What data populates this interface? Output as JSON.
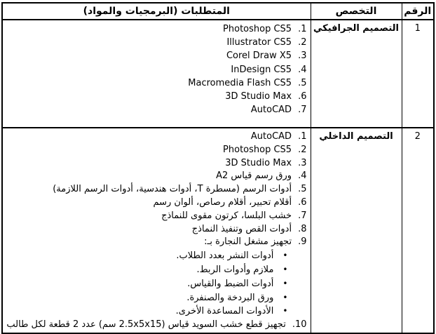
{
  "table": {
    "header": {
      "number": "الرقم",
      "specialization": "التخصص",
      "requirements": "المتطلبات (البرمجيات والمواد)"
    },
    "rows": [
      {
        "number": "1",
        "specialization": "التصميم الجرافيكي",
        "items": [
          {
            "marker": "1.",
            "text": "Photoshop CS5"
          },
          {
            "marker": "2.",
            "text": "Illustrator CS5"
          },
          {
            "marker": "3.",
            "text": "Corel Draw X5"
          },
          {
            "marker": "4.",
            "text": "InDesign CS5"
          },
          {
            "marker": "5.",
            "text": "Macromedia Flash CS5"
          },
          {
            "marker": "6.",
            "text": "3D Studio Max"
          },
          {
            "marker": "7.",
            "text": "AutoCAD"
          }
        ]
      },
      {
        "number": "2",
        "specialization": "التصميم الداخلي",
        "items": [
          {
            "marker": "1.",
            "text": "AutoCAD"
          },
          {
            "marker": "2.",
            "text": "Photoshop CS5"
          },
          {
            "marker": "3.",
            "text": "3D Studio Max"
          },
          {
            "marker": "4.",
            "text": "ورق رسم قياس A2"
          },
          {
            "marker": "5.",
            "text": "أدوات الرسم (مسطرة T، أدوات هندسية، أدوات الرسم اللازمة)"
          },
          {
            "marker": "6.",
            "text": "أقلام تحبير، أقلام رصاص، ألوان رسم"
          },
          {
            "marker": "7.",
            "text": "خشب البلسا، كرتون مقوى للنماذج"
          },
          {
            "marker": "8.",
            "text": "أدوات القص وتنفيذ النماذج"
          },
          {
            "marker": "9.",
            "text": "تجهيز مشغل النجارة بـ:"
          }
        ],
        "bullets": [
          {
            "marker": "•",
            "text": "أدوات النشر بعدد الطلاب."
          },
          {
            "marker": "•",
            "text": "ملازم وأدوات الربط."
          },
          {
            "marker": "•",
            "text": "أدوات الضبط والقياس."
          },
          {
            "marker": "•",
            "text": "ورق البردخة والصنفرة."
          },
          {
            "marker": "•",
            "text": "الأدوات المساعدة الأخرى."
          }
        ],
        "footer_item": {
          "marker": "10.",
          "text": "تجهيز قطع خشب السويد قياس (2.5x5x15 سم) عدد 2 قطعة لكل طالب"
        }
      }
    ]
  }
}
